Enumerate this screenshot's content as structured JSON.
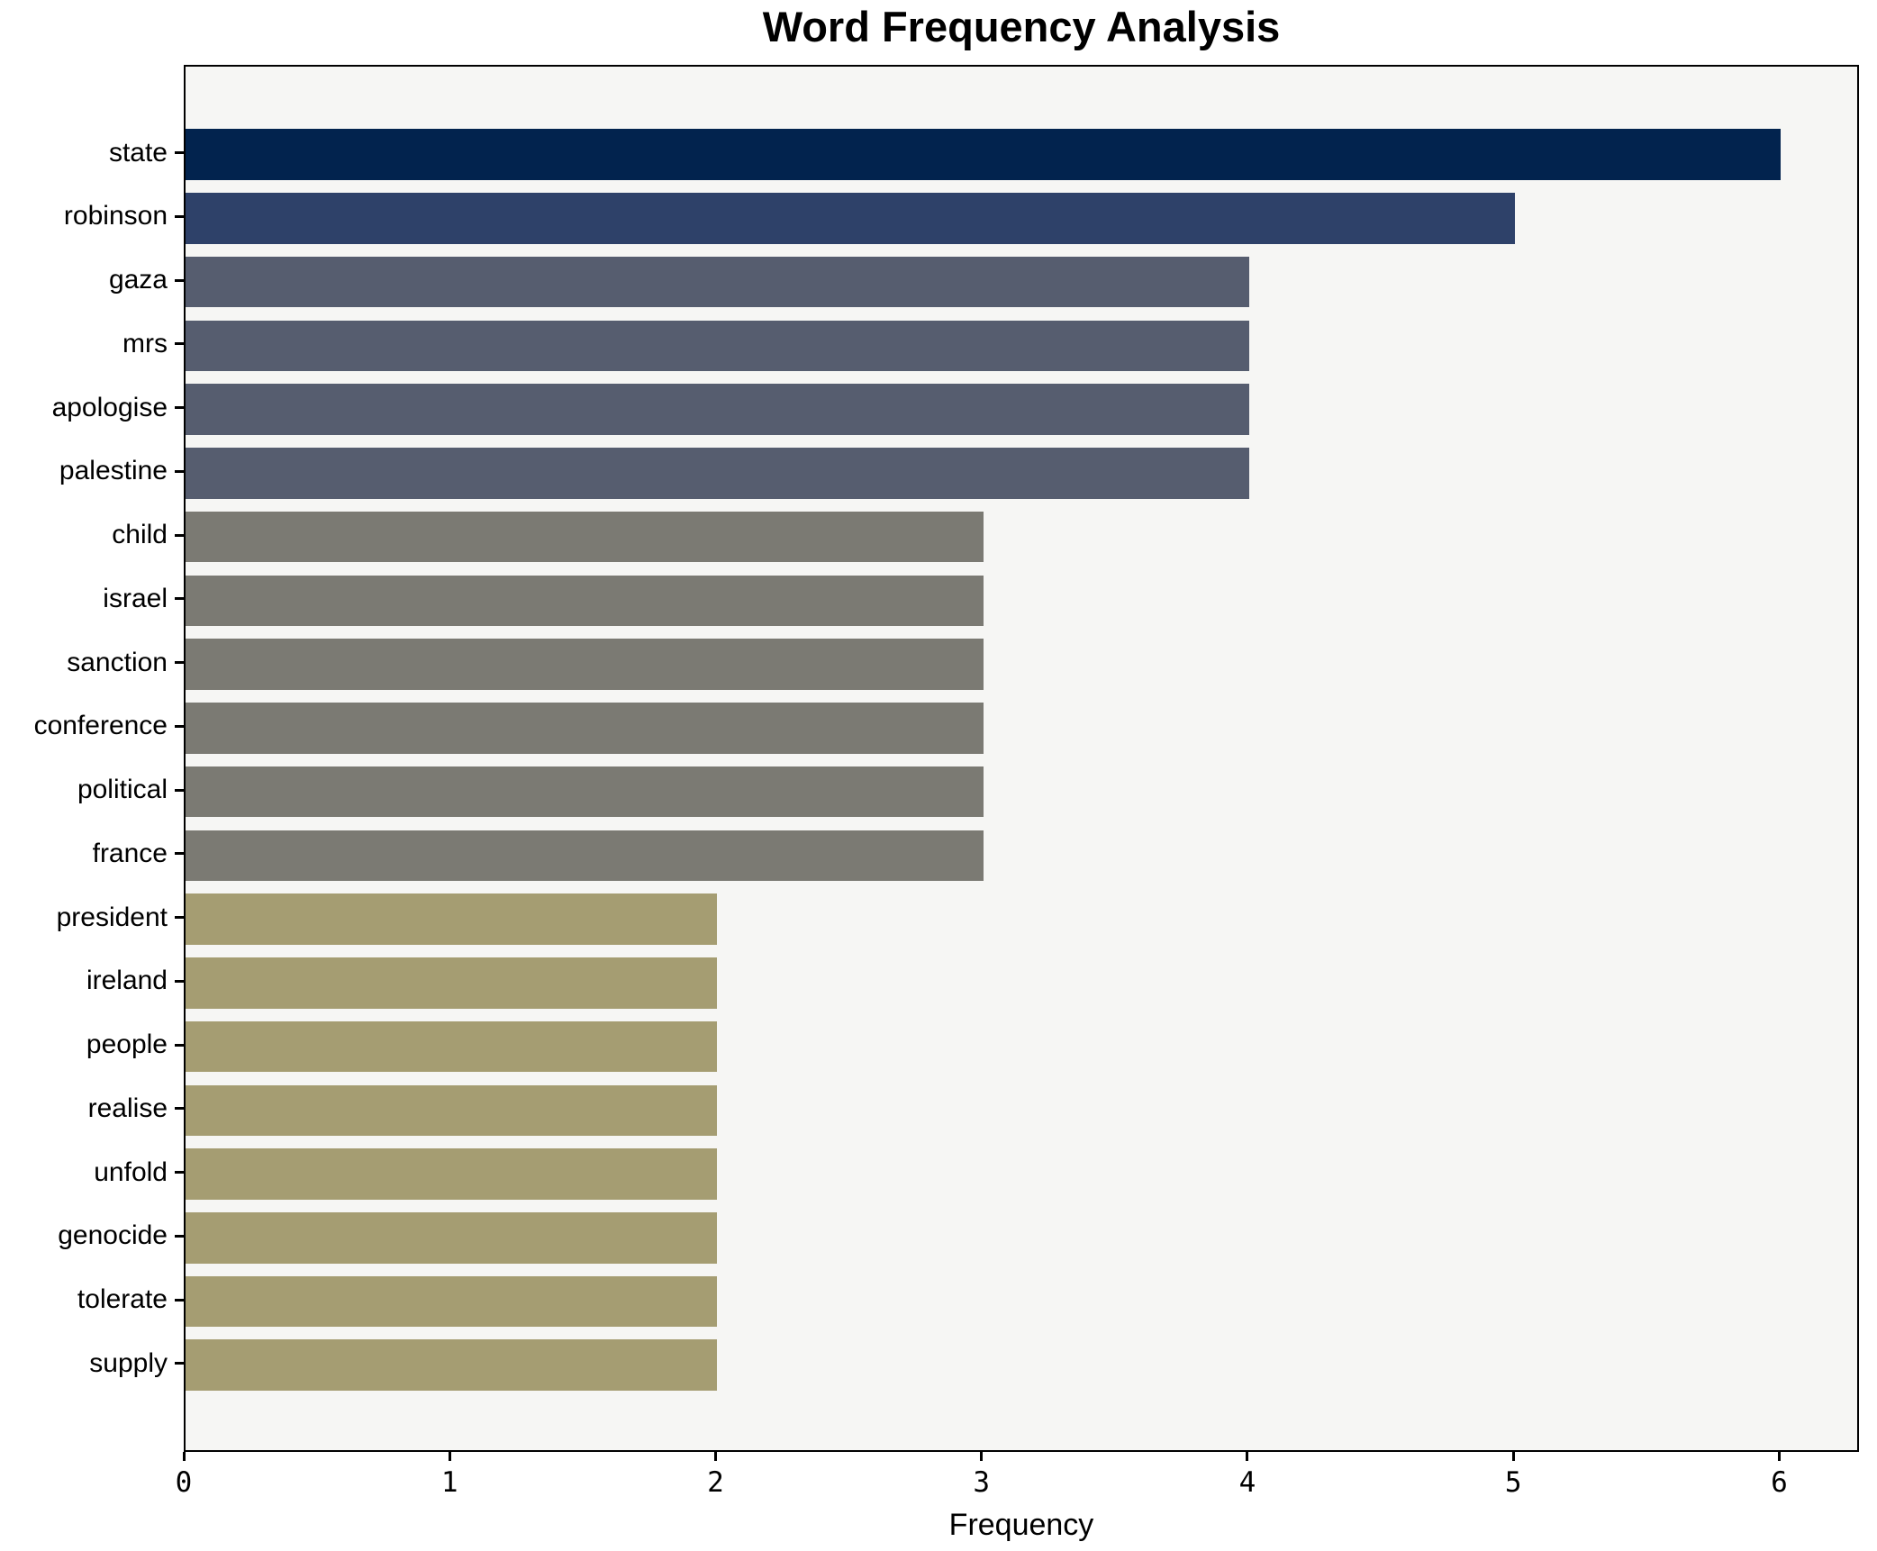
{
  "chart_data": {
    "type": "bar",
    "orientation": "horizontal",
    "title": "Word Frequency Analysis",
    "xlabel": "Frequency",
    "ylabel": "",
    "categories": [
      "state",
      "robinson",
      "gaza",
      "mrs",
      "apologise",
      "palestine",
      "child",
      "israel",
      "sanction",
      "conference",
      "political",
      "france",
      "president",
      "ireland",
      "people",
      "realise",
      "unfold",
      "genocide",
      "tolerate",
      "supply"
    ],
    "values": [
      6,
      5,
      4,
      4,
      4,
      4,
      3,
      3,
      3,
      3,
      3,
      3,
      2,
      2,
      2,
      2,
      2,
      2,
      2,
      2
    ],
    "bar_colors": [
      "#02234e",
      "#2e4169",
      "#565d6f",
      "#565d6f",
      "#565d6f",
      "#565d6f",
      "#7b7a73",
      "#7b7a73",
      "#7b7a73",
      "#7b7a73",
      "#7b7a73",
      "#7b7a73",
      "#a59d72",
      "#a59d72",
      "#a59d72",
      "#a59d72",
      "#a59d72",
      "#a59d72",
      "#a59d72",
      "#a59d72"
    ],
    "xticks": [
      0,
      1,
      2,
      3,
      4,
      5,
      6
    ],
    "xlim": [
      0,
      6.3
    ],
    "grid": false,
    "legend": null,
    "plot_background": "#f6f6f4",
    "spine_color": "#000000",
    "text_color": "#000000"
  }
}
